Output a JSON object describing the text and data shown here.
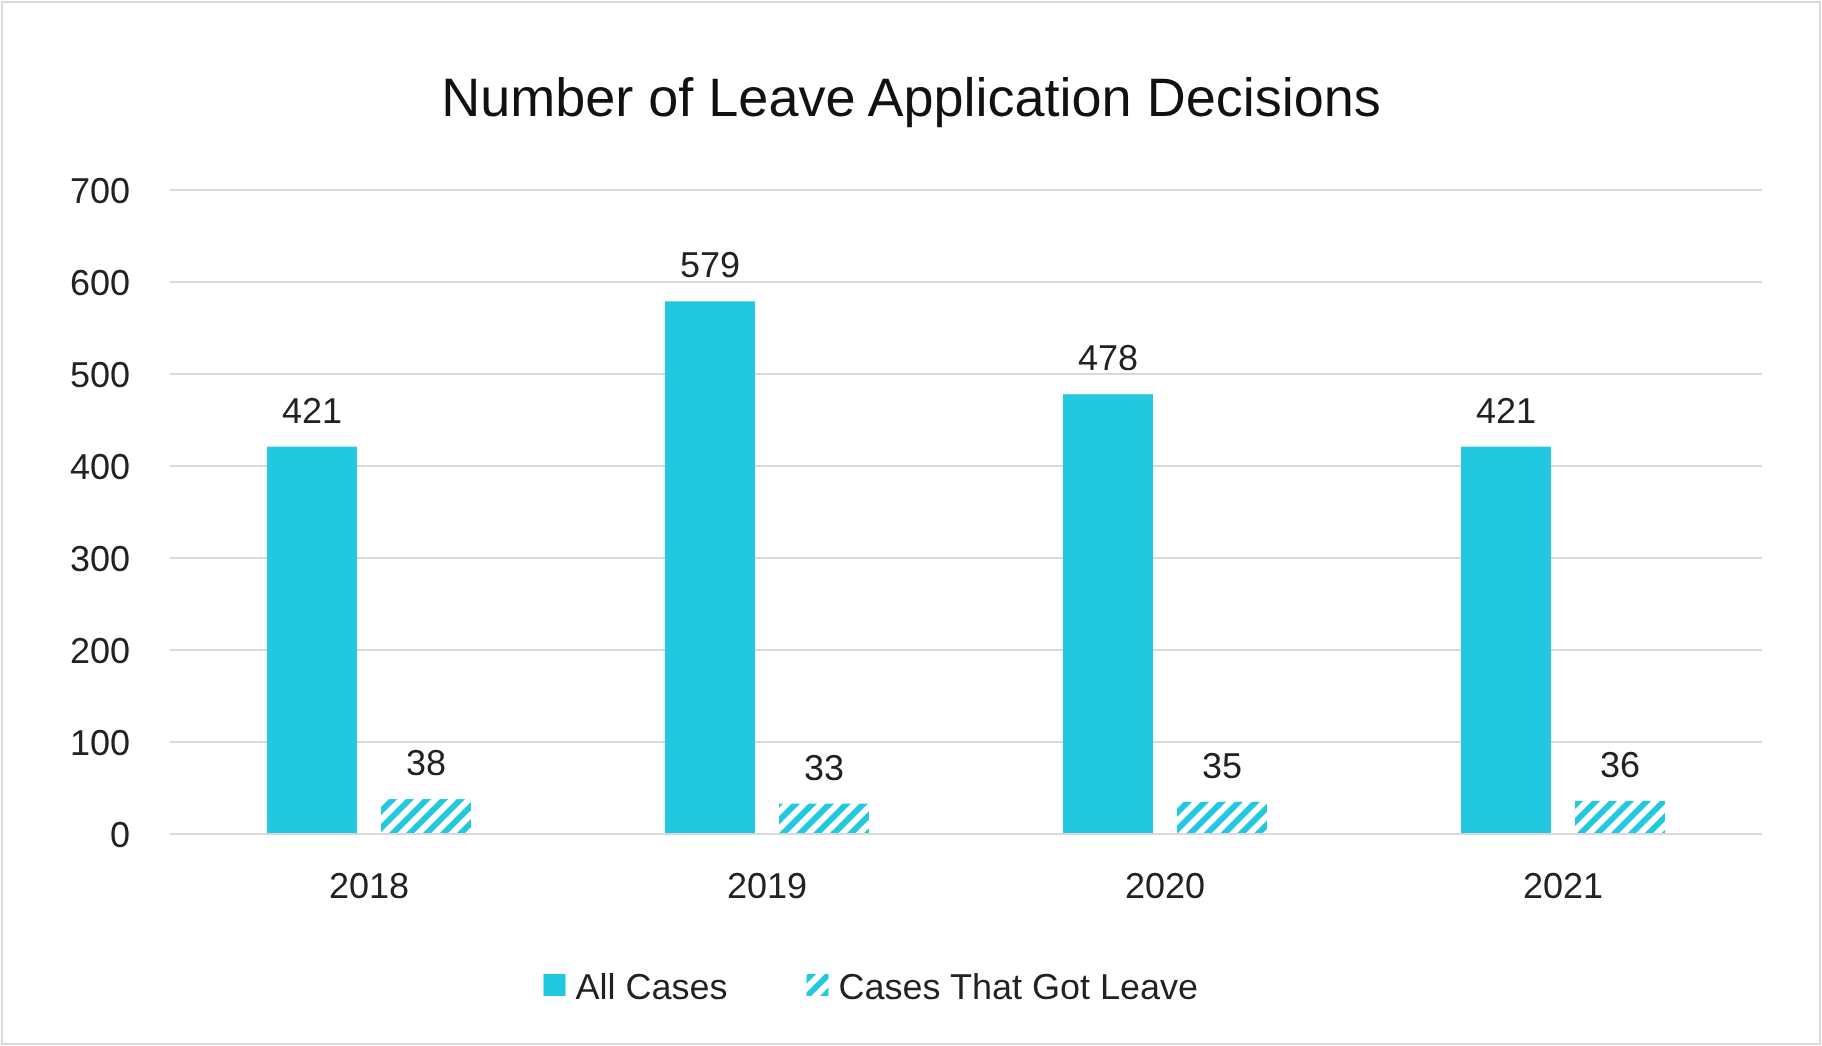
{
  "chart_data": {
    "type": "bar",
    "title": "Number of Leave Application Decisions",
    "categories": [
      "2018",
      "2019",
      "2020",
      "2021"
    ],
    "series": [
      {
        "name": "All Cases",
        "color": "#22c8e0",
        "values": [
          421,
          579,
          478,
          421
        ]
      },
      {
        "name": "Cases That Got Leave",
        "color": "#22c8e0",
        "values": [
          38,
          33,
          35,
          36
        ]
      }
    ],
    "ylim": [
      0,
      700
    ],
    "yticks": [
      0,
      100,
      200,
      300,
      400,
      500,
      600,
      700
    ],
    "grid": "y",
    "legend": "bottom",
    "data_labels": true
  }
}
